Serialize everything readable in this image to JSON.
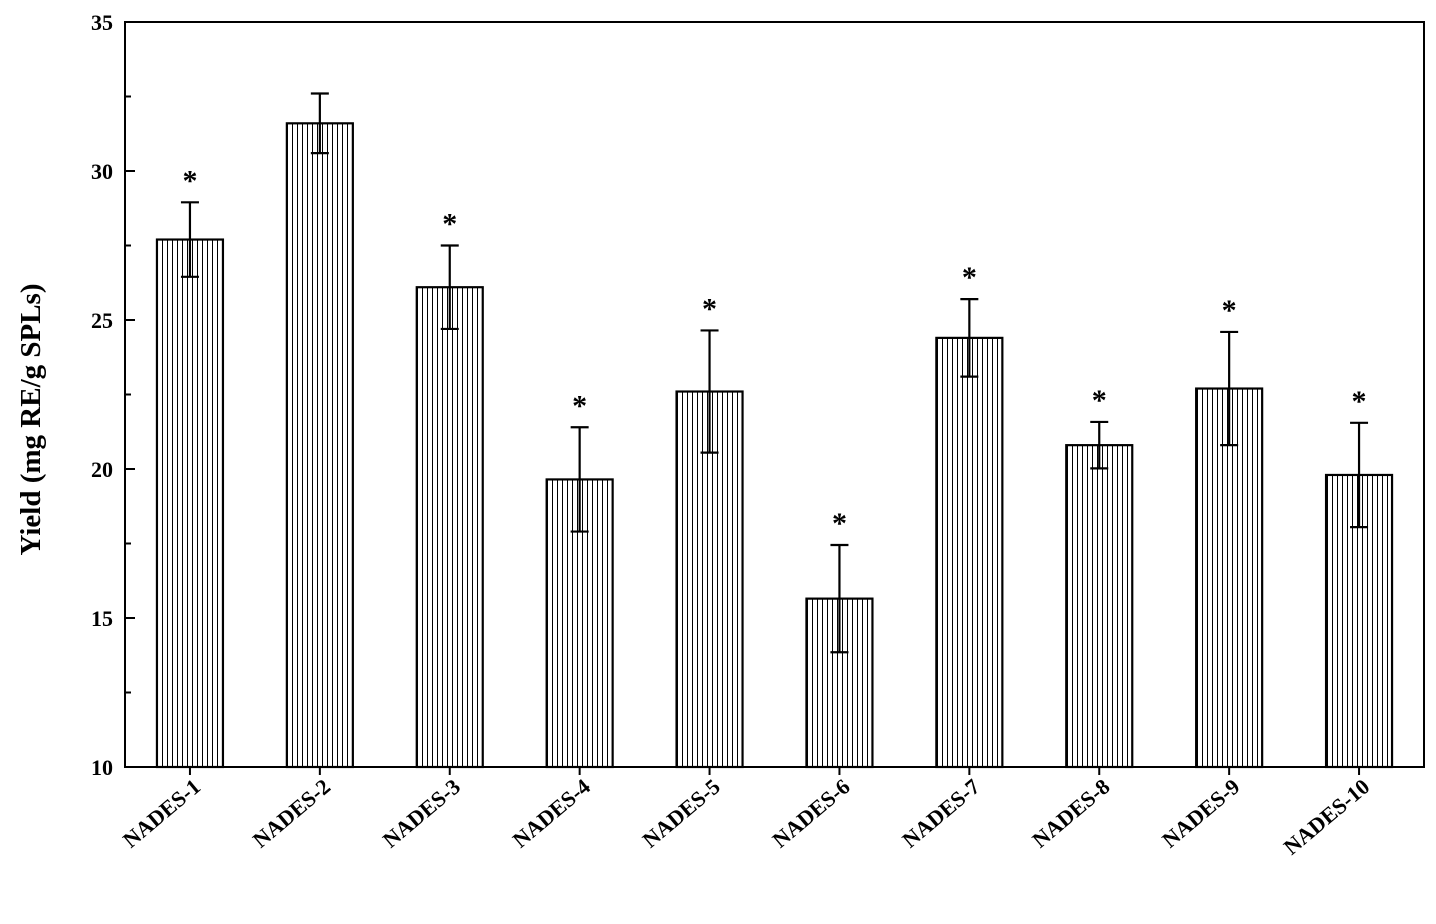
{
  "chart_data": {
    "type": "bar",
    "title": "",
    "xlabel": "",
    "ylabel": "Yield (mg RE/g SPLs)",
    "ylim": [
      10,
      35
    ],
    "yticks": [
      10,
      15,
      20,
      25,
      30,
      35
    ],
    "categories": [
      "NADES-1",
      "NADES-2",
      "NADES-3",
      "NADES-4",
      "NADES-5",
      "NADES-6",
      "NADES-7",
      "NADES-8",
      "NADES-9",
      "NADES-10"
    ],
    "values": [
      27.7,
      31.6,
      26.1,
      19.65,
      22.6,
      15.65,
      24.4,
      20.8,
      22.7,
      19.8
    ],
    "errors": [
      1.25,
      1.0,
      1.4,
      1.75,
      2.05,
      1.8,
      1.3,
      0.78,
      1.9,
      1.75
    ],
    "annotations": [
      "*",
      "",
      "*",
      "*",
      "*",
      "*",
      "*",
      "*",
      "*",
      "*"
    ],
    "bar_fill": "vertical-hatch",
    "grid": false,
    "legend": "none"
  }
}
